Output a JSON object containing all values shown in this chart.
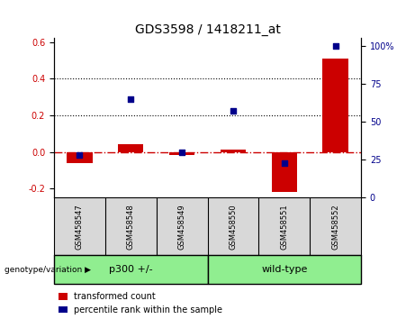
{
  "title": "GDS3598 / 1418211_at",
  "samples": [
    "GSM458547",
    "GSM458548",
    "GSM458549",
    "GSM458550",
    "GSM458551",
    "GSM458552"
  ],
  "transformed_count": [
    -0.06,
    0.04,
    -0.015,
    0.012,
    -0.22,
    0.51
  ],
  "percentile_rank_right": [
    28,
    65,
    30,
    57,
    23,
    100
  ],
  "group_colors": [
    "#90EE90",
    "#90EE90"
  ],
  "ylim_left": [
    -0.25,
    0.62
  ],
  "ylim_right": [
    0,
    105
  ],
  "yticks_left": [
    -0.2,
    0.0,
    0.2,
    0.4,
    0.6
  ],
  "yticks_right": [
    0,
    25,
    50,
    75,
    100
  ],
  "hlines": [
    0.2,
    0.4
  ],
  "bar_color": "#CC0000",
  "dot_color": "#00008B",
  "zero_line_color": "#CC0000",
  "bar_width": 0.5,
  "legend_items": [
    "transformed count",
    "percentile rank within the sample"
  ],
  "genotype_label": "genotype/variation",
  "group1_label": "p300 +/-",
  "group2_label": "wild-type",
  "background_color": "#D8D8D8"
}
